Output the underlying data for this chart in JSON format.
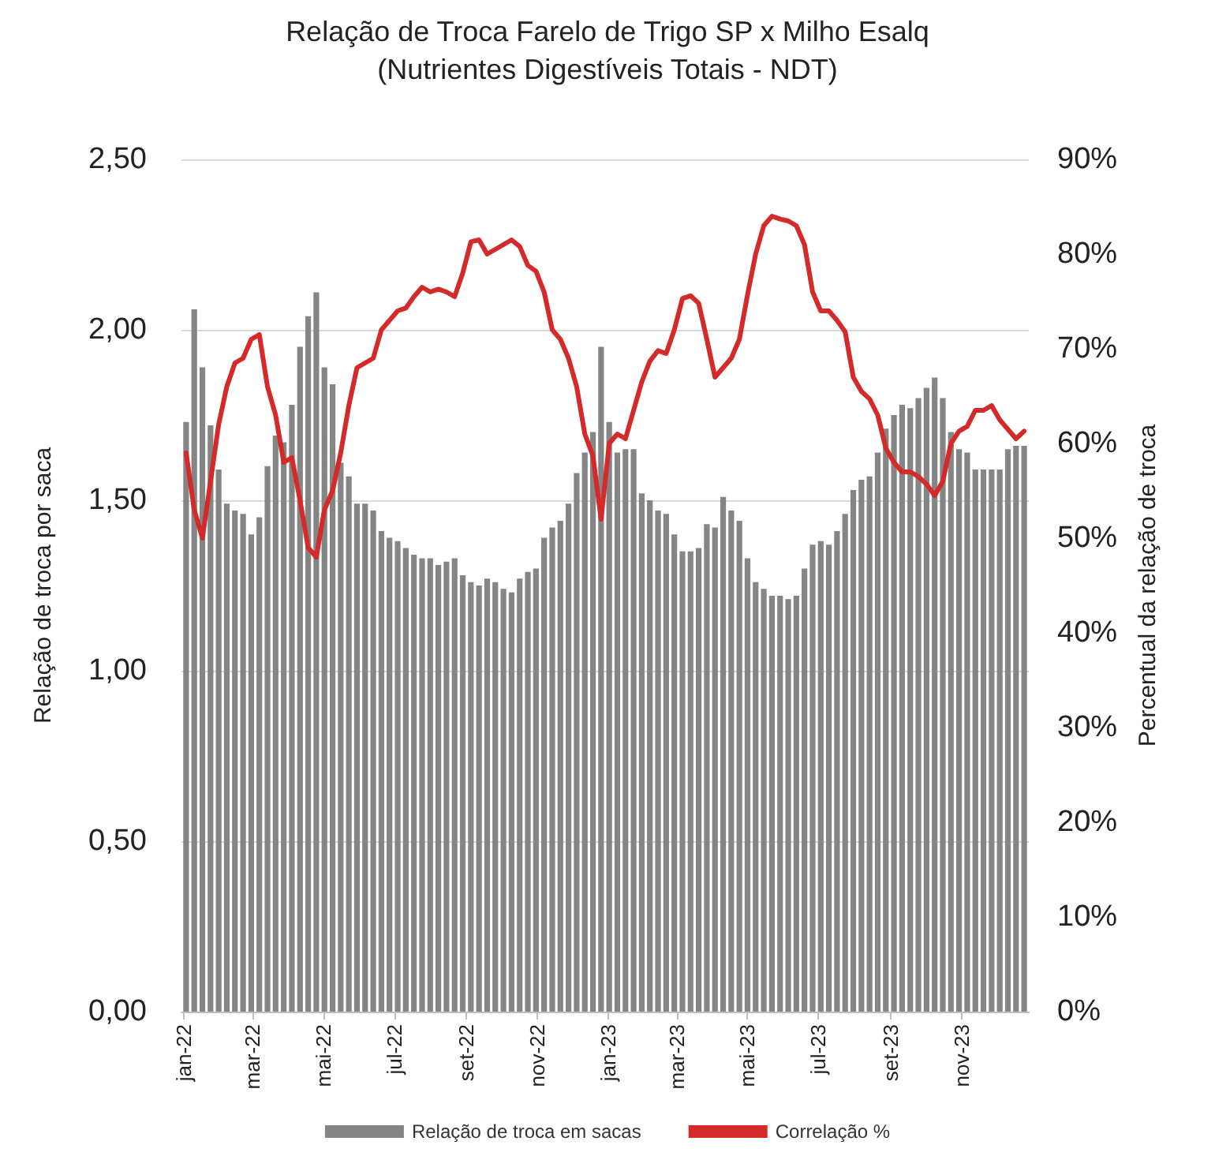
{
  "chart_data": {
    "type": "bar",
    "title": "Relação de Troca Farelo de Trigo SP x Milho Esalq",
    "subtitle": "(Nutrientes Digestíveis Totais - NDT)",
    "ylabel": "Relação de troca por saca",
    "y2label": "Percentual da relação de troca",
    "x": [
      "2022-01-03",
      "2022-01-10",
      "2022-01-17",
      "2022-01-24",
      "2022-01-31",
      "2022-02-07",
      "2022-02-14",
      "2022-02-21",
      "2022-02-28",
      "2022-03-07",
      "2022-03-14",
      "2022-03-21",
      "2022-03-28",
      "2022-04-04",
      "2022-04-11",
      "2022-04-18",
      "2022-04-25",
      "2022-05-02",
      "2022-05-09",
      "2022-05-16",
      "2022-05-23",
      "2022-05-30",
      "2022-06-06",
      "2022-06-13",
      "2022-06-20",
      "2022-06-27",
      "2022-07-04",
      "2022-07-11",
      "2022-07-18",
      "2022-07-25",
      "2022-08-01",
      "2022-08-08",
      "2022-08-15",
      "2022-08-22",
      "2022-08-29",
      "2022-09-05",
      "2022-09-12",
      "2022-09-19",
      "2022-09-26",
      "2022-10-03",
      "2022-10-10",
      "2022-10-17",
      "2022-10-24",
      "2022-10-31",
      "2022-11-07",
      "2022-11-14",
      "2022-11-21",
      "2022-11-28",
      "2022-12-05",
      "2022-12-12",
      "2022-12-19",
      "2022-12-26",
      "2023-01-02",
      "2023-01-09",
      "2023-01-16",
      "2023-01-23",
      "2023-01-30",
      "2023-02-06",
      "2023-02-13",
      "2023-02-20",
      "2023-02-27",
      "2023-03-06",
      "2023-03-13",
      "2023-03-20",
      "2023-03-27",
      "2023-04-03",
      "2023-04-10",
      "2023-04-17",
      "2023-04-24",
      "2023-05-01",
      "2023-05-08",
      "2023-05-15",
      "2023-05-22",
      "2023-05-29",
      "2023-06-05",
      "2023-06-12",
      "2023-06-19",
      "2023-06-26",
      "2023-07-03",
      "2023-07-10",
      "2023-07-17",
      "2023-07-24",
      "2023-07-31",
      "2023-08-07",
      "2023-08-14",
      "2023-08-21",
      "2023-08-28",
      "2023-09-04",
      "2023-09-11",
      "2023-09-18",
      "2023-09-25",
      "2023-10-02",
      "2023-10-09",
      "2023-10-16",
      "2023-10-23",
      "2023-10-30",
      "2023-11-06",
      "2023-11-13",
      "2023-11-20",
      "2023-11-27",
      "2023-12-04",
      "2023-12-11",
      "2023-12-18",
      "2023-12-25"
    ],
    "series": [
      {
        "name": "Relação de troca em sacas",
        "color": "#858585",
        "values": [
          1.73,
          2.06,
          1.89,
          1.72,
          1.59,
          1.49,
          1.47,
          1.46,
          1.4,
          1.45,
          1.6,
          1.69,
          1.67,
          1.78,
          1.95,
          2.04,
          2.11,
          1.89,
          1.84,
          1.61,
          1.57,
          1.49,
          1.49,
          1.47,
          1.41,
          1.39,
          1.38,
          1.36,
          1.34,
          1.33,
          1.33,
          1.31,
          1.32,
          1.33,
          1.28,
          1.26,
          1.25,
          1.27,
          1.26,
          1.24,
          1.23,
          1.27,
          1.29,
          1.3,
          1.39,
          1.42,
          1.44,
          1.49,
          1.58,
          1.64,
          1.7,
          1.95,
          1.73,
          1.64,
          1.65,
          1.65,
          1.52,
          1.5,
          1.47,
          1.46,
          1.4,
          1.35,
          1.35,
          1.36,
          1.43,
          1.42,
          1.51,
          1.47,
          1.44,
          1.33,
          1.26,
          1.24,
          1.22,
          1.22,
          1.21,
          1.22,
          1.3,
          1.37,
          1.38,
          1.37,
          1.41,
          1.46,
          1.53,
          1.56,
          1.57,
          1.64,
          1.71,
          1.75,
          1.78,
          1.77,
          1.8,
          1.83,
          1.86,
          1.8,
          1.7,
          1.65,
          1.64,
          1.59,
          1.59,
          1.59,
          1.59,
          1.65,
          1.66,
          1.66
        ]
      },
      {
        "name": "Correlação %",
        "type": "line",
        "axis": "y2",
        "color": "#d42a2a",
        "values": [
          59,
          53,
          50,
          56,
          62,
          66,
          68.5,
          69,
          71,
          71.5,
          66,
          63,
          58,
          58.5,
          54,
          49,
          48,
          53,
          55,
          59,
          64,
          68,
          68.5,
          69,
          72,
          73,
          74,
          74.3,
          75.5,
          76.5,
          76,
          76.3,
          76,
          75.5,
          78,
          81.3,
          81.5,
          80,
          80.5,
          81,
          81.5,
          80.8,
          78.8,
          78.2,
          76,
          72,
          71,
          69,
          66,
          61,
          58.7,
          52,
          60,
          61,
          60.5,
          63.5,
          66.5,
          68.7,
          69.8,
          69.5,
          72,
          75.3,
          75.6,
          74.8,
          71,
          67,
          68,
          69,
          71,
          75.7,
          80,
          83,
          84,
          83.7,
          83.5,
          83,
          81,
          76,
          74,
          74,
          73,
          71.8,
          67,
          65.5,
          64.7,
          63,
          59.5,
          58,
          57,
          57,
          56.5,
          55.7,
          54.5,
          56,
          60,
          61.3,
          61.8,
          63.5,
          63.5,
          64,
          62.5,
          61.5,
          60.5,
          61.3
        ]
      }
    ],
    "xlim": [
      "2021-12-30",
      "2023-12-29"
    ],
    "xticks": [
      {
        "value": "2022-01-01",
        "label": "jan-22"
      },
      {
        "value": "2022-03-01",
        "label": "mar-22"
      },
      {
        "value": "2022-05-01",
        "label": "mai-22"
      },
      {
        "value": "2022-07-01",
        "label": "jul-22"
      },
      {
        "value": "2022-09-01",
        "label": "set-22"
      },
      {
        "value": "2022-11-01",
        "label": "nov-22"
      },
      {
        "value": "2023-01-01",
        "label": "jan-23"
      },
      {
        "value": "2023-03-01",
        "label": "mar-23"
      },
      {
        "value": "2023-05-01",
        "label": "mai-23"
      },
      {
        "value": "2023-07-01",
        "label": "jul-23"
      },
      {
        "value": "2023-09-01",
        "label": "set-23"
      },
      {
        "value": "2023-11-01",
        "label": "nov-23"
      }
    ],
    "ylim": [
      0,
      2.5
    ],
    "yticks": [
      {
        "value": 0,
        "label": "0,00"
      },
      {
        "value": 0.5,
        "label": "0,50"
      },
      {
        "value": 1,
        "label": "1,00"
      },
      {
        "value": 1.5,
        "label": "1,50"
      },
      {
        "value": 2,
        "label": "2,00"
      },
      {
        "value": 2.5,
        "label": "2,50"
      }
    ],
    "y2lim": [
      0,
      90
    ],
    "y2ticks": [
      {
        "value": 0,
        "label": "0%"
      },
      {
        "value": 10,
        "label": "10%"
      },
      {
        "value": 20,
        "label": "20%"
      },
      {
        "value": 30,
        "label": "30%"
      },
      {
        "value": 40,
        "label": "40%"
      },
      {
        "value": 50,
        "label": "50%"
      },
      {
        "value": 60,
        "label": "60%"
      },
      {
        "value": 70,
        "label": "70%"
      },
      {
        "value": 80,
        "label": "80%"
      },
      {
        "value": 90,
        "label": "90%"
      }
    ],
    "grid": "y",
    "legend": "bottom",
    "marker": "none"
  }
}
